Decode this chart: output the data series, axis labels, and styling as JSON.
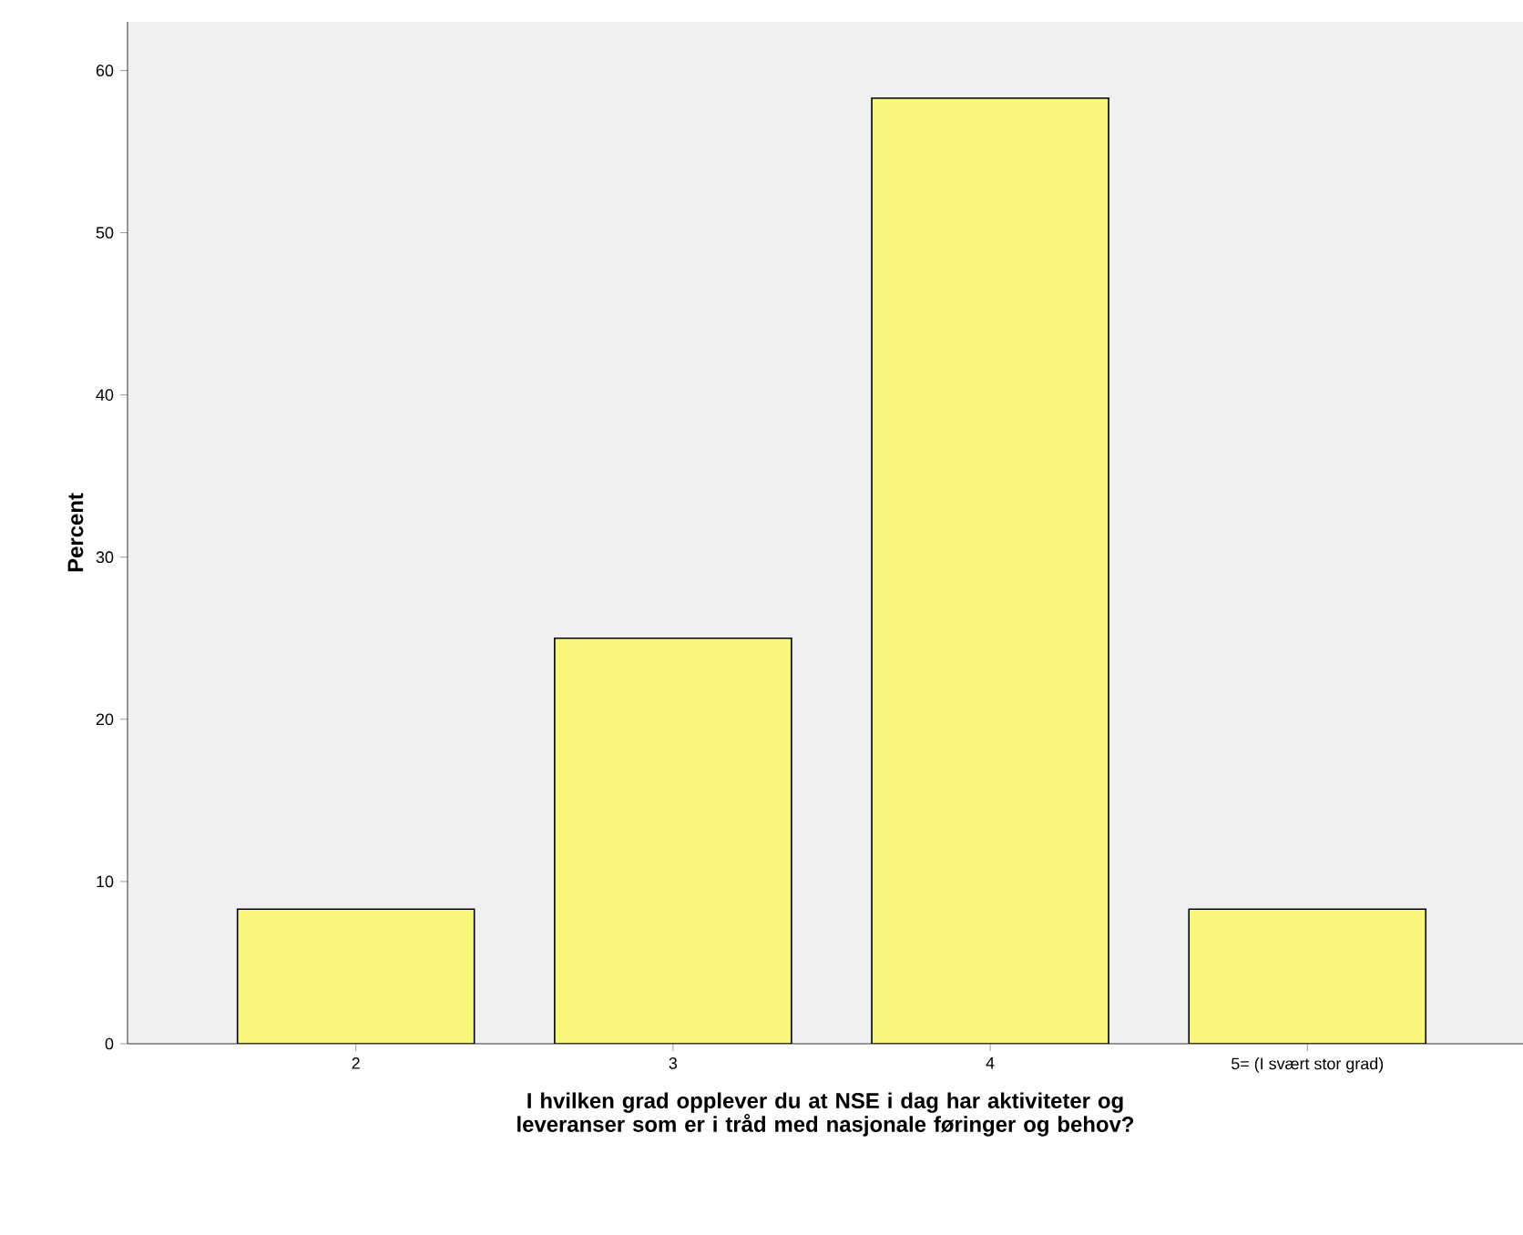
{
  "chart_data": {
    "type": "bar",
    "categories": [
      "2",
      "3",
      "4",
      "5= (I svært stor grad)"
    ],
    "values": [
      8.3,
      25,
      58.3,
      8.3
    ],
    "color": "#f8f77c",
    "ylim": [
      0,
      63
    ],
    "yticks": [
      0,
      10,
      20,
      30,
      40,
      50,
      60
    ],
    "ylabel": "Percent",
    "xlabel": "I hvilken grad opplever du at NSE i dag har aktiviteter og leveranser som er i tråd med nasjonale føringer og behov?",
    "marker": "none"
  }
}
